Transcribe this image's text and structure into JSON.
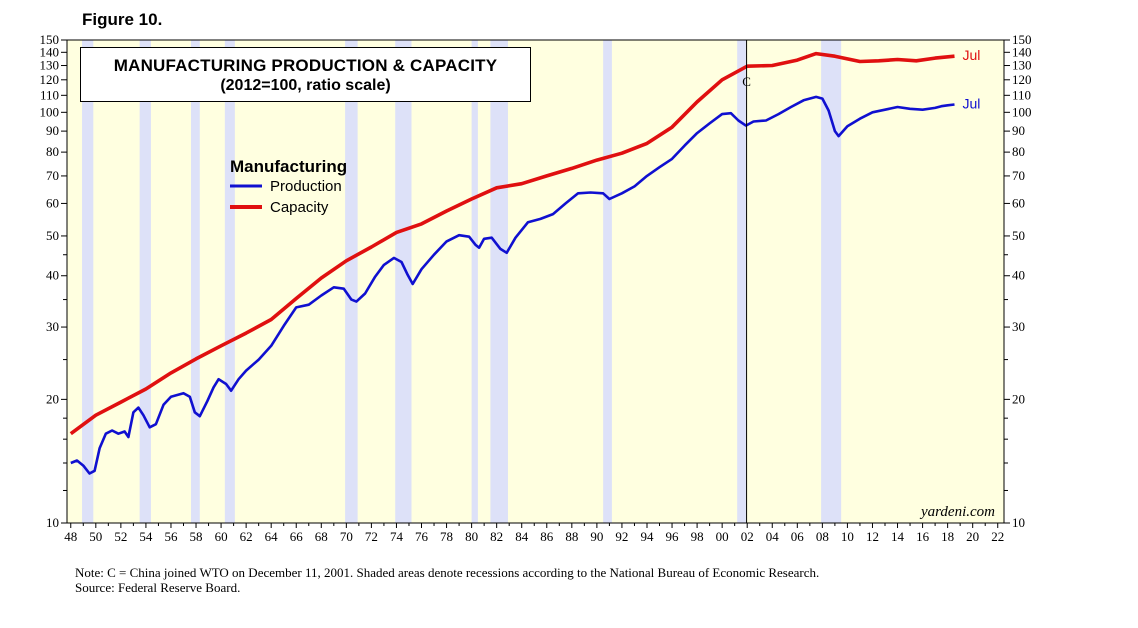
{
  "figure_label": "Figure 10.",
  "notes": {
    "line1": "Note: C = China joined WTO on December 11, 2001. Shaded areas denote recessions according to the National Bureau of Economic Research.",
    "line2": "Source: Federal Reserve Board."
  },
  "colors": {
    "background": "#ffffe0",
    "recession": "#dde1f8",
    "production": "#1010d0",
    "capacity": "#e01010"
  },
  "chart_data": {
    "type": "line",
    "title": "MANUFACTURING PRODUCTION & CAPACITY",
    "subtitle": "(2012=100, ratio scale)",
    "legend_title": "Manufacturing",
    "legend_position": "upper-left",
    "y_scale": "log",
    "ylim": [
      10,
      150
    ],
    "xlim": [
      1947.7,
      2022.5
    ],
    "y_ticks": [
      10,
      20,
      30,
      40,
      50,
      60,
      70,
      80,
      90,
      100,
      110,
      120,
      130,
      140,
      150
    ],
    "x_tick_labels": [
      "48",
      "50",
      "52",
      "54",
      "56",
      "58",
      "60",
      "62",
      "64",
      "66",
      "68",
      "70",
      "72",
      "74",
      "76",
      "78",
      "80",
      "82",
      "84",
      "86",
      "88",
      "90",
      "92",
      "94",
      "96",
      "98",
      "00",
      "02",
      "04",
      "06",
      "08",
      "10",
      "12",
      "14",
      "16",
      "18",
      "20",
      "22"
    ],
    "watermark": "yardeni.com",
    "annotation": {
      "label": "C",
      "x": 2001.95
    },
    "recessions": [
      [
        1948.9,
        1949.8
      ],
      [
        1953.5,
        1954.4
      ],
      [
        1957.6,
        1958.3
      ],
      [
        1960.3,
        1961.1
      ],
      [
        1969.9,
        1970.9
      ],
      [
        1973.9,
        1975.2
      ],
      [
        1980.0,
        1980.5
      ],
      [
        1981.5,
        1982.9
      ],
      [
        1990.5,
        1991.2
      ],
      [
        2001.2,
        2001.9
      ],
      [
        2007.9,
        2009.5
      ]
    ],
    "series": [
      {
        "name": "Production",
        "end_label": "Jul",
        "points": [
          [
            1948.0,
            14.0
          ],
          [
            1948.5,
            14.2
          ],
          [
            1949.0,
            13.8
          ],
          [
            1949.5,
            13.2
          ],
          [
            1949.9,
            13.4
          ],
          [
            1950.3,
            15.2
          ],
          [
            1950.8,
            16.5
          ],
          [
            1951.3,
            16.8
          ],
          [
            1951.8,
            16.5
          ],
          [
            1952.3,
            16.7
          ],
          [
            1952.6,
            16.2
          ],
          [
            1953.0,
            18.6
          ],
          [
            1953.4,
            19.1
          ],
          [
            1953.8,
            18.3
          ],
          [
            1954.3,
            17.1
          ],
          [
            1954.8,
            17.4
          ],
          [
            1955.4,
            19.4
          ],
          [
            1956.0,
            20.3
          ],
          [
            1956.5,
            20.5
          ],
          [
            1957.0,
            20.7
          ],
          [
            1957.5,
            20.3
          ],
          [
            1957.9,
            18.6
          ],
          [
            1958.3,
            18.2
          ],
          [
            1958.9,
            19.8
          ],
          [
            1959.4,
            21.4
          ],
          [
            1959.8,
            22.4
          ],
          [
            1960.4,
            21.8
          ],
          [
            1960.8,
            21.0
          ],
          [
            1961.4,
            22.4
          ],
          [
            1962.0,
            23.5
          ],
          [
            1963.0,
            25.0
          ],
          [
            1964.0,
            27.0
          ],
          [
            1965.0,
            30.2
          ],
          [
            1966.0,
            33.5
          ],
          [
            1967.0,
            34.0
          ],
          [
            1968.0,
            35.8
          ],
          [
            1969.0,
            37.5
          ],
          [
            1969.8,
            37.2
          ],
          [
            1970.4,
            35.0
          ],
          [
            1970.8,
            34.6
          ],
          [
            1971.5,
            36.2
          ],
          [
            1972.3,
            39.8
          ],
          [
            1973.0,
            42.5
          ],
          [
            1973.8,
            44.2
          ],
          [
            1974.4,
            43.2
          ],
          [
            1974.9,
            40.2
          ],
          [
            1975.3,
            38.2
          ],
          [
            1976.0,
            41.5
          ],
          [
            1977.0,
            45.0
          ],
          [
            1978.0,
            48.5
          ],
          [
            1979.0,
            50.2
          ],
          [
            1979.8,
            49.8
          ],
          [
            1980.3,
            47.6
          ],
          [
            1980.6,
            46.8
          ],
          [
            1981.0,
            49.2
          ],
          [
            1981.6,
            49.5
          ],
          [
            1982.3,
            46.5
          ],
          [
            1982.8,
            45.5
          ],
          [
            1983.5,
            49.5
          ],
          [
            1984.5,
            54.0
          ],
          [
            1985.5,
            55.0
          ],
          [
            1986.5,
            56.5
          ],
          [
            1987.5,
            60.0
          ],
          [
            1988.5,
            63.5
          ],
          [
            1989.5,
            63.8
          ],
          [
            1990.5,
            63.5
          ],
          [
            1991.0,
            61.5
          ],
          [
            1992.0,
            63.5
          ],
          [
            1993.0,
            66.0
          ],
          [
            1994.0,
            70.0
          ],
          [
            1995.0,
            73.5
          ],
          [
            1996.0,
            77.0
          ],
          [
            1997.0,
            83.0
          ],
          [
            1998.0,
            89.0
          ],
          [
            1999.0,
            94.0
          ],
          [
            2000.0,
            99.0
          ],
          [
            2000.7,
            99.5
          ],
          [
            2001.3,
            95.5
          ],
          [
            2001.9,
            92.8
          ],
          [
            2002.5,
            95.0
          ],
          [
            2003.5,
            95.5
          ],
          [
            2004.5,
            99.0
          ],
          [
            2005.5,
            103.0
          ],
          [
            2006.5,
            107.0
          ],
          [
            2007.5,
            109.0
          ],
          [
            2008.0,
            108.0
          ],
          [
            2008.5,
            101.0
          ],
          [
            2009.0,
            90.0
          ],
          [
            2009.3,
            87.5
          ],
          [
            2010.0,
            92.5
          ],
          [
            2011.0,
            96.5
          ],
          [
            2012.0,
            100.0
          ],
          [
            2013.0,
            101.5
          ],
          [
            2014.0,
            103.0
          ],
          [
            2015.0,
            102.0
          ],
          [
            2016.0,
            101.5
          ],
          [
            2017.0,
            102.5
          ],
          [
            2017.5,
            103.5
          ],
          [
            2018.0,
            104.0
          ],
          [
            2018.55,
            104.5
          ]
        ]
      },
      {
        "name": "Capacity",
        "end_label": "Jul",
        "points": [
          [
            1948.0,
            16.5
          ],
          [
            1950.0,
            18.3
          ],
          [
            1952.0,
            19.7
          ],
          [
            1954.0,
            21.2
          ],
          [
            1956.0,
            23.2
          ],
          [
            1958.0,
            25.1
          ],
          [
            1960.0,
            27.0
          ],
          [
            1962.0,
            29.0
          ],
          [
            1964.0,
            31.3
          ],
          [
            1966.0,
            35.2
          ],
          [
            1968.0,
            39.5
          ],
          [
            1970.0,
            43.5
          ],
          [
            1972.0,
            47.0
          ],
          [
            1974.0,
            51.0
          ],
          [
            1976.0,
            53.5
          ],
          [
            1978.0,
            57.5
          ],
          [
            1980.0,
            61.5
          ],
          [
            1982.0,
            65.5
          ],
          [
            1984.0,
            67.0
          ],
          [
            1986.0,
            70.0
          ],
          [
            1988.0,
            73.0
          ],
          [
            1990.0,
            76.5
          ],
          [
            1992.0,
            79.5
          ],
          [
            1994.0,
            84.0
          ],
          [
            1996.0,
            92.0
          ],
          [
            1998.0,
            106.0
          ],
          [
            2000.0,
            120.0
          ],
          [
            2002.0,
            129.5
          ],
          [
            2004.0,
            130.0
          ],
          [
            2006.0,
            134.0
          ],
          [
            2007.5,
            139.0
          ],
          [
            2009.0,
            137.0
          ],
          [
            2011.0,
            133.0
          ],
          [
            2012.5,
            133.5
          ],
          [
            2014.0,
            134.5
          ],
          [
            2015.5,
            133.5
          ],
          [
            2017.0,
            135.5
          ],
          [
            2018.55,
            137.0
          ]
        ]
      }
    ]
  }
}
